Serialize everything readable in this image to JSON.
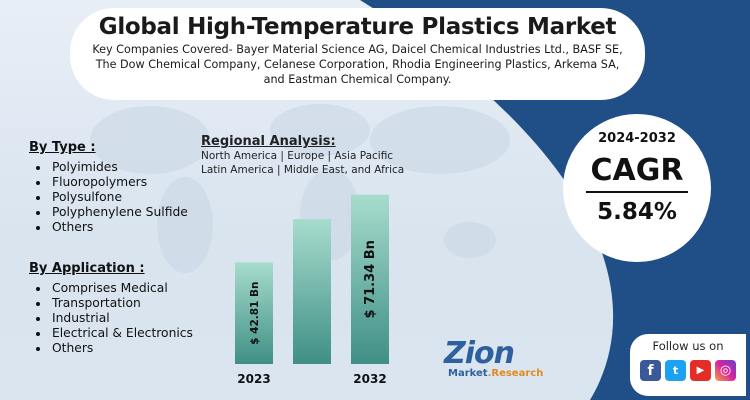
{
  "header": {
    "title": "Global High-Temperature Plastics Market",
    "companies": "Key Companies Covered- Bayer Material Science AG, Daicel Chemical Industries Ltd., BASF SE, The Dow Chemical Company, Celanese Corporation, Rhodia Engineering Plastics, Arkema SA, and Eastman Chemical Company."
  },
  "by_type": {
    "heading": "By Type :",
    "items": [
      "Polyimides",
      "Fluoropolymers",
      "Polysulfone",
      "Polyphenylene Sulfide",
      "Others"
    ]
  },
  "by_application": {
    "heading": "By Application :",
    "items": [
      "Comprises Medical",
      "Transportation",
      "Industrial",
      "Electrical & Electronics",
      "Others"
    ]
  },
  "regional": {
    "title": "Regional Analysis:",
    "line1": "North America | Europe | Asia Pacific",
    "line2": "Latin America | Middle East, and Africa"
  },
  "cagr": {
    "period": "2024-2032",
    "label": "CAGR",
    "value": "5.84%"
  },
  "follow": {
    "label": "Follow us on",
    "icons": [
      "facebook-icon",
      "twitter-icon",
      "youtube-icon",
      "instagram-icon"
    ],
    "fb_glyph": "f",
    "tw_glyph": "t",
    "yt_glyph": "▶",
    "ig_glyph": "◎"
  },
  "logo": {
    "name": "Zion",
    "sub_a": "Market",
    "sub_b": ".Research"
  },
  "colors": {
    "navy_panel": "#1f4f86",
    "bar_top": "#a7dccd",
    "bar_bottom": "#3f8f86",
    "accent_orange": "#e08a1e"
  },
  "chart_data": {
    "type": "bar",
    "categories": [
      "2023",
      "",
      "2032"
    ],
    "values": [
      42.81,
      61.0,
      71.34
    ],
    "value_labels": [
      "$ 42.81 Bn",
      "",
      "$ 71.34 Bn"
    ],
    "x_labels": [
      "2023",
      "",
      "2032"
    ],
    "ylim": [
      0,
      80
    ],
    "unit": "USD Billion",
    "grid": false
  }
}
